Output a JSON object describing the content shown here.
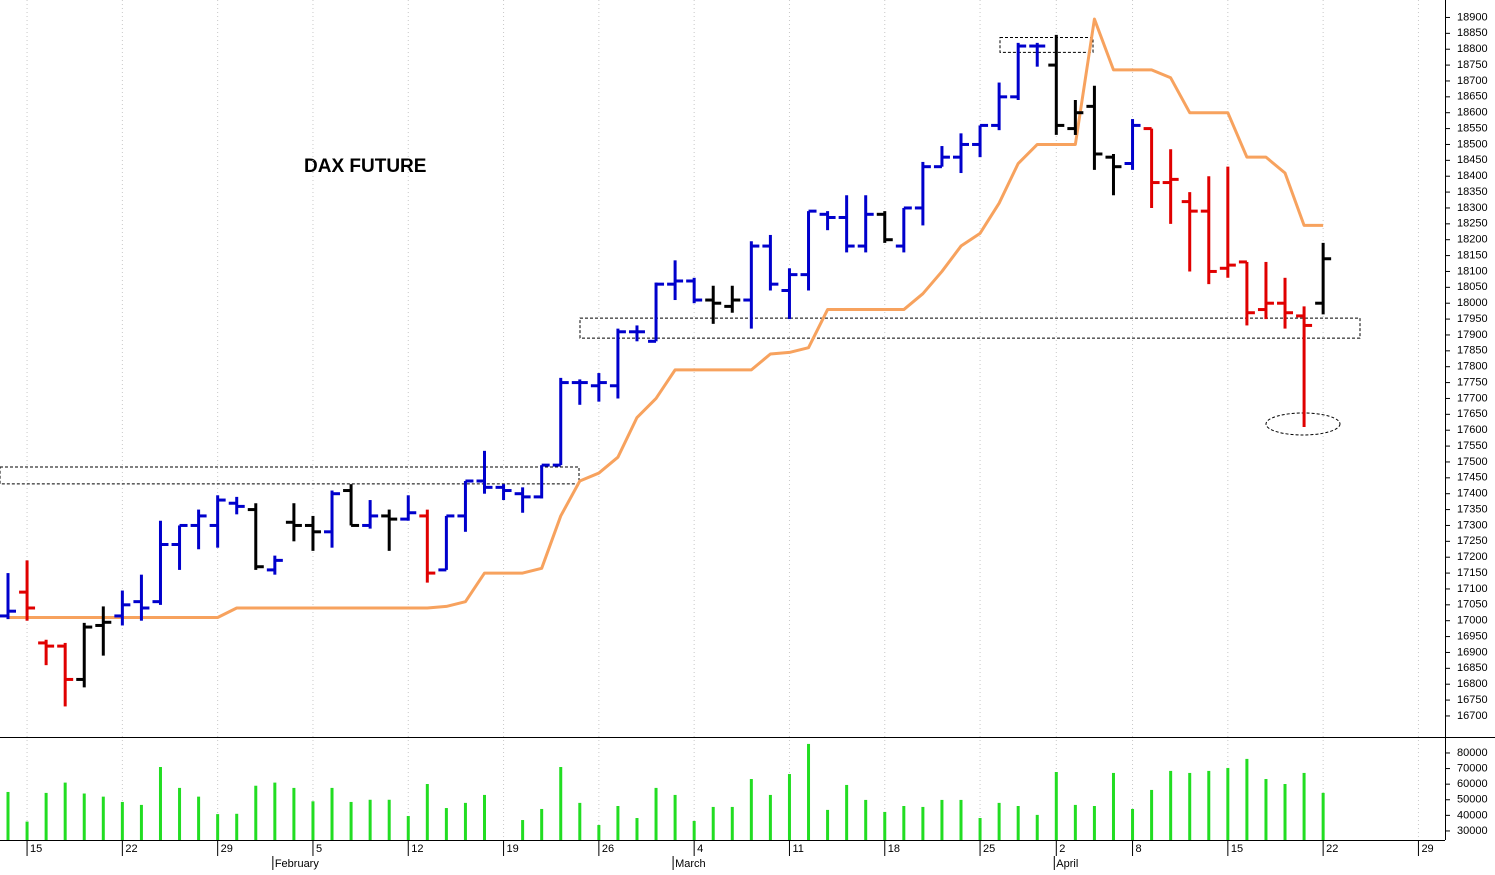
{
  "chart_data": [
    {
      "type": "ohlc",
      "title": "DAX FUTURE",
      "categories": [
        null,
        "15",
        null,
        null,
        null,
        null,
        "22",
        null,
        null,
        null,
        null,
        "29",
        null,
        null,
        null,
        null,
        "5",
        null,
        null,
        null,
        null,
        "12",
        null,
        null,
        null,
        null,
        "19",
        null,
        null,
        null,
        null,
        "26",
        null,
        null,
        null,
        null,
        "4",
        null,
        null,
        null,
        null,
        "11",
        null,
        null,
        null,
        null,
        "18",
        null,
        null,
        null,
        null,
        "25",
        null,
        null,
        null,
        "2",
        null,
        null,
        null,
        "8",
        null,
        null,
        null,
        null,
        "15",
        null,
        null,
        null,
        null,
        "22",
        null,
        null,
        null,
        null,
        "29",
        null
      ],
      "months": [
        null,
        null,
        null,
        null,
        null,
        null,
        null,
        null,
        null,
        null,
        null,
        null,
        null,
        null,
        "February",
        null,
        null,
        null,
        null,
        null,
        null,
        null,
        null,
        null,
        null,
        null,
        null,
        null,
        null,
        null,
        null,
        null,
        null,
        null,
        null,
        "March",
        null,
        null,
        null,
        null,
        null,
        null,
        null,
        null,
        null,
        null,
        null,
        null,
        null,
        null,
        null,
        null,
        null,
        null,
        null,
        "April",
        null,
        null,
        null,
        null,
        null,
        null,
        null,
        null,
        null,
        null,
        null,
        null,
        null,
        null,
        null,
        null,
        null,
        null,
        null,
        null
      ],
      "open": [
        17015,
        17090,
        16930,
        16920,
        16815,
        16985,
        17015,
        17060,
        17060,
        17240,
        17300,
        17300,
        17370,
        17350,
        17160,
        17310,
        17300,
        17280,
        17410,
        17300,
        17330,
        17320,
        17330,
        17160,
        17330,
        17440,
        17420,
        17400,
        17390,
        17490,
        17750,
        17740,
        17740,
        17910,
        17880,
        18060,
        18070,
        18010,
        17990,
        18010,
        18180,
        18040,
        18090,
        18280,
        18270,
        18180,
        18280,
        18180,
        18300,
        18430,
        18460,
        18500,
        18560,
        18650,
        18810,
        18750,
        18550,
        18620,
        18460,
        18440,
        18550,
        18380,
        18320,
        18290,
        18110,
        18130,
        17980,
        18000,
        17960,
        18000,
        null,
        null,
        null,
        null,
        null,
        null
      ],
      "high": [
        17150,
        17190,
        16940,
        16930,
        16993,
        17045,
        17095,
        17145,
        17315,
        17300,
        17350,
        17395,
        17390,
        17370,
        17205,
        17370,
        17330,
        17410,
        17430,
        17380,
        17350,
        17395,
        17350,
        17330,
        17440,
        17535,
        17430,
        17420,
        17490,
        17765,
        17760,
        17780,
        17920,
        17930,
        18065,
        18135,
        18080,
        18055,
        18055,
        18195,
        18215,
        18110,
        18290,
        18290,
        18340,
        18340,
        18290,
        18300,
        18445,
        18495,
        18535,
        18560,
        18695,
        18820,
        18820,
        18845,
        18640,
        18685,
        18470,
        18580,
        18550,
        18485,
        18350,
        18400,
        18430,
        18130,
        18130,
        18080,
        17990,
        18190,
        null,
        null,
        null,
        null,
        null,
        null
      ],
      "low": [
        17005,
        17000,
        16860,
        16730,
        16790,
        16890,
        16985,
        17000,
        17050,
        17160,
        17225,
        17230,
        17335,
        17160,
        17145,
        17250,
        17220,
        17230,
        17300,
        17290,
        17220,
        17315,
        17120,
        17160,
        17280,
        17400,
        17380,
        17340,
        17385,
        17490,
        17680,
        17690,
        17700,
        17880,
        17880,
        18010,
        18000,
        17935,
        17970,
        17920,
        18040,
        17950,
        18040,
        18230,
        18160,
        18160,
        18190,
        18160,
        18245,
        18430,
        18410,
        18460,
        18545,
        18640,
        18745,
        18530,
        18530,
        18420,
        18340,
        18420,
        18300,
        18250,
        18100,
        18060,
        18080,
        17930,
        17950,
        17920,
        17610,
        17965,
        null,
        null,
        null,
        null,
        null,
        null
      ],
      "close": [
        17030,
        17040,
        16920,
        16815,
        16980,
        16995,
        17050,
        17040,
        17240,
        17300,
        17330,
        17380,
        17360,
        17170,
        17190,
        17300,
        17280,
        17400,
        17300,
        17330,
        17320,
        17340,
        17150,
        17330,
        17440,
        17420,
        17410,
        17390,
        17490,
        17750,
        17750,
        17750,
        17910,
        17910,
        18060,
        18070,
        18010,
        18000,
        18010,
        18180,
        18060,
        18090,
        18290,
        18270,
        18180,
        18280,
        18200,
        18300,
        18430,
        18460,
        18500,
        18560,
        18650,
        18810,
        18810,
        18560,
        18600,
        18470,
        18430,
        18560,
        18380,
        18390,
        18290,
        18100,
        18120,
        17970,
        18000,
        17970,
        17930,
        18140,
        null,
        null,
        null,
        null,
        null,
        null
      ],
      "colors": [
        "#0000cc",
        "#e00000",
        "#e00000",
        "#e00000",
        "#000000",
        "#000000",
        "#0000cc",
        "#0000cc",
        "#0000cc",
        "#0000cc",
        "#0000cc",
        "#0000cc",
        "#0000cc",
        "#000000",
        "#0000cc",
        "#000000",
        "#000000",
        "#0000cc",
        "#000000",
        "#0000cc",
        "#000000",
        "#0000cc",
        "#e00000",
        "#0000cc",
        "#0000cc",
        "#0000cc",
        "#0000cc",
        "#0000cc",
        "#0000cc",
        "#0000cc",
        "#0000cc",
        "#0000cc",
        "#0000cc",
        "#0000cc",
        "#0000cc",
        "#0000cc",
        "#0000cc",
        "#000000",
        "#000000",
        "#0000cc",
        "#0000cc",
        "#0000cc",
        "#0000cc",
        "#0000cc",
        "#0000cc",
        "#0000cc",
        "#000000",
        "#0000cc",
        "#0000cc",
        "#0000cc",
        "#0000cc",
        "#0000cc",
        "#0000cc",
        "#0000cc",
        "#0000cc",
        "#000000",
        "#000000",
        "#000000",
        "#000000",
        "#0000cc",
        "#e00000",
        "#e00000",
        "#e00000",
        "#e00000",
        "#e00000",
        "#e00000",
        "#e00000",
        "#e00000",
        "#e00000",
        "#000000",
        null,
        null,
        null,
        null,
        null,
        null
      ],
      "overlay": {
        "color": "#f7a25e",
        "values": [
          17010,
          17010,
          17010,
          17010,
          17010,
          17010,
          17010,
          17010,
          17010,
          17010,
          17010,
          17010,
          17040,
          17040,
          17040,
          17040,
          17040,
          17040,
          17040,
          17040,
          17040,
          17040,
          17040,
          17045,
          17060,
          17150,
          17150,
          17150,
          17165,
          17330,
          17440,
          17465,
          17515,
          17640,
          17700,
          17790,
          17790,
          17790,
          17790,
          17790,
          17840,
          17845,
          17860,
          17980,
          17980,
          17980,
          17980,
          17980,
          18030,
          18100,
          18180,
          18220,
          18315,
          18440,
          18500,
          18500,
          18500,
          18895,
          18735,
          18735,
          18735,
          18710,
          18600,
          18600,
          18600,
          18460,
          18460,
          18410,
          18245,
          18245,
          null,
          null,
          null,
          null,
          null,
          null
        ]
      },
      "zones": [
        {
          "low": 17431,
          "high": 17484
        },
        {
          "low": 17890,
          "high": 17953
        },
        {
          "low": 18790,
          "high": 18837
        }
      ],
      "ylim": [
        16640,
        18955
      ],
      "yticks": [
        16700,
        16750,
        16800,
        16850,
        16900,
        16950,
        17000,
        17050,
        17100,
        17150,
        17200,
        17250,
        17300,
        17350,
        17400,
        17450,
        17500,
        17550,
        17600,
        17650,
        17700,
        17750,
        17800,
        17850,
        17900,
        17950,
        18000,
        18050,
        18100,
        18150,
        18200,
        18250,
        18300,
        18350,
        18400,
        18450,
        18500,
        18550,
        18600,
        18650,
        18700,
        18750,
        18800,
        18850,
        18900
      ]
    },
    {
      "type": "bar",
      "color": "#22dd22",
      "values": [
        55000,
        36000,
        54400,
        61000,
        54000,
        52000,
        48600,
        46700,
        71000,
        57600,
        52000,
        40800,
        41000,
        59000,
        61000,
        57600,
        49000,
        57600,
        48600,
        50000,
        50000,
        39600,
        60100,
        44700,
        48000,
        53100,
        null,
        37000,
        44100,
        71000,
        48000,
        33800,
        46000,
        38300,
        57600,
        53100,
        36400,
        45400,
        45400,
        63300,
        53100,
        66500,
        85800,
        43500,
        59500,
        49900,
        42200,
        46000,
        45400,
        49900,
        49900,
        38300,
        48000,
        46000,
        40300,
        67800,
        46700,
        46000,
        67200,
        44100,
        56300,
        68500,
        67200,
        68500,
        70400,
        76200,
        63300,
        60100,
        67200,
        54400,
        null,
        null,
        null,
        null,
        null,
        null
      ],
      "ylim": [
        24200,
        89600
      ],
      "yticks": [
        30000,
        40000,
        50000,
        60000,
        70000,
        80000
      ]
    }
  ]
}
